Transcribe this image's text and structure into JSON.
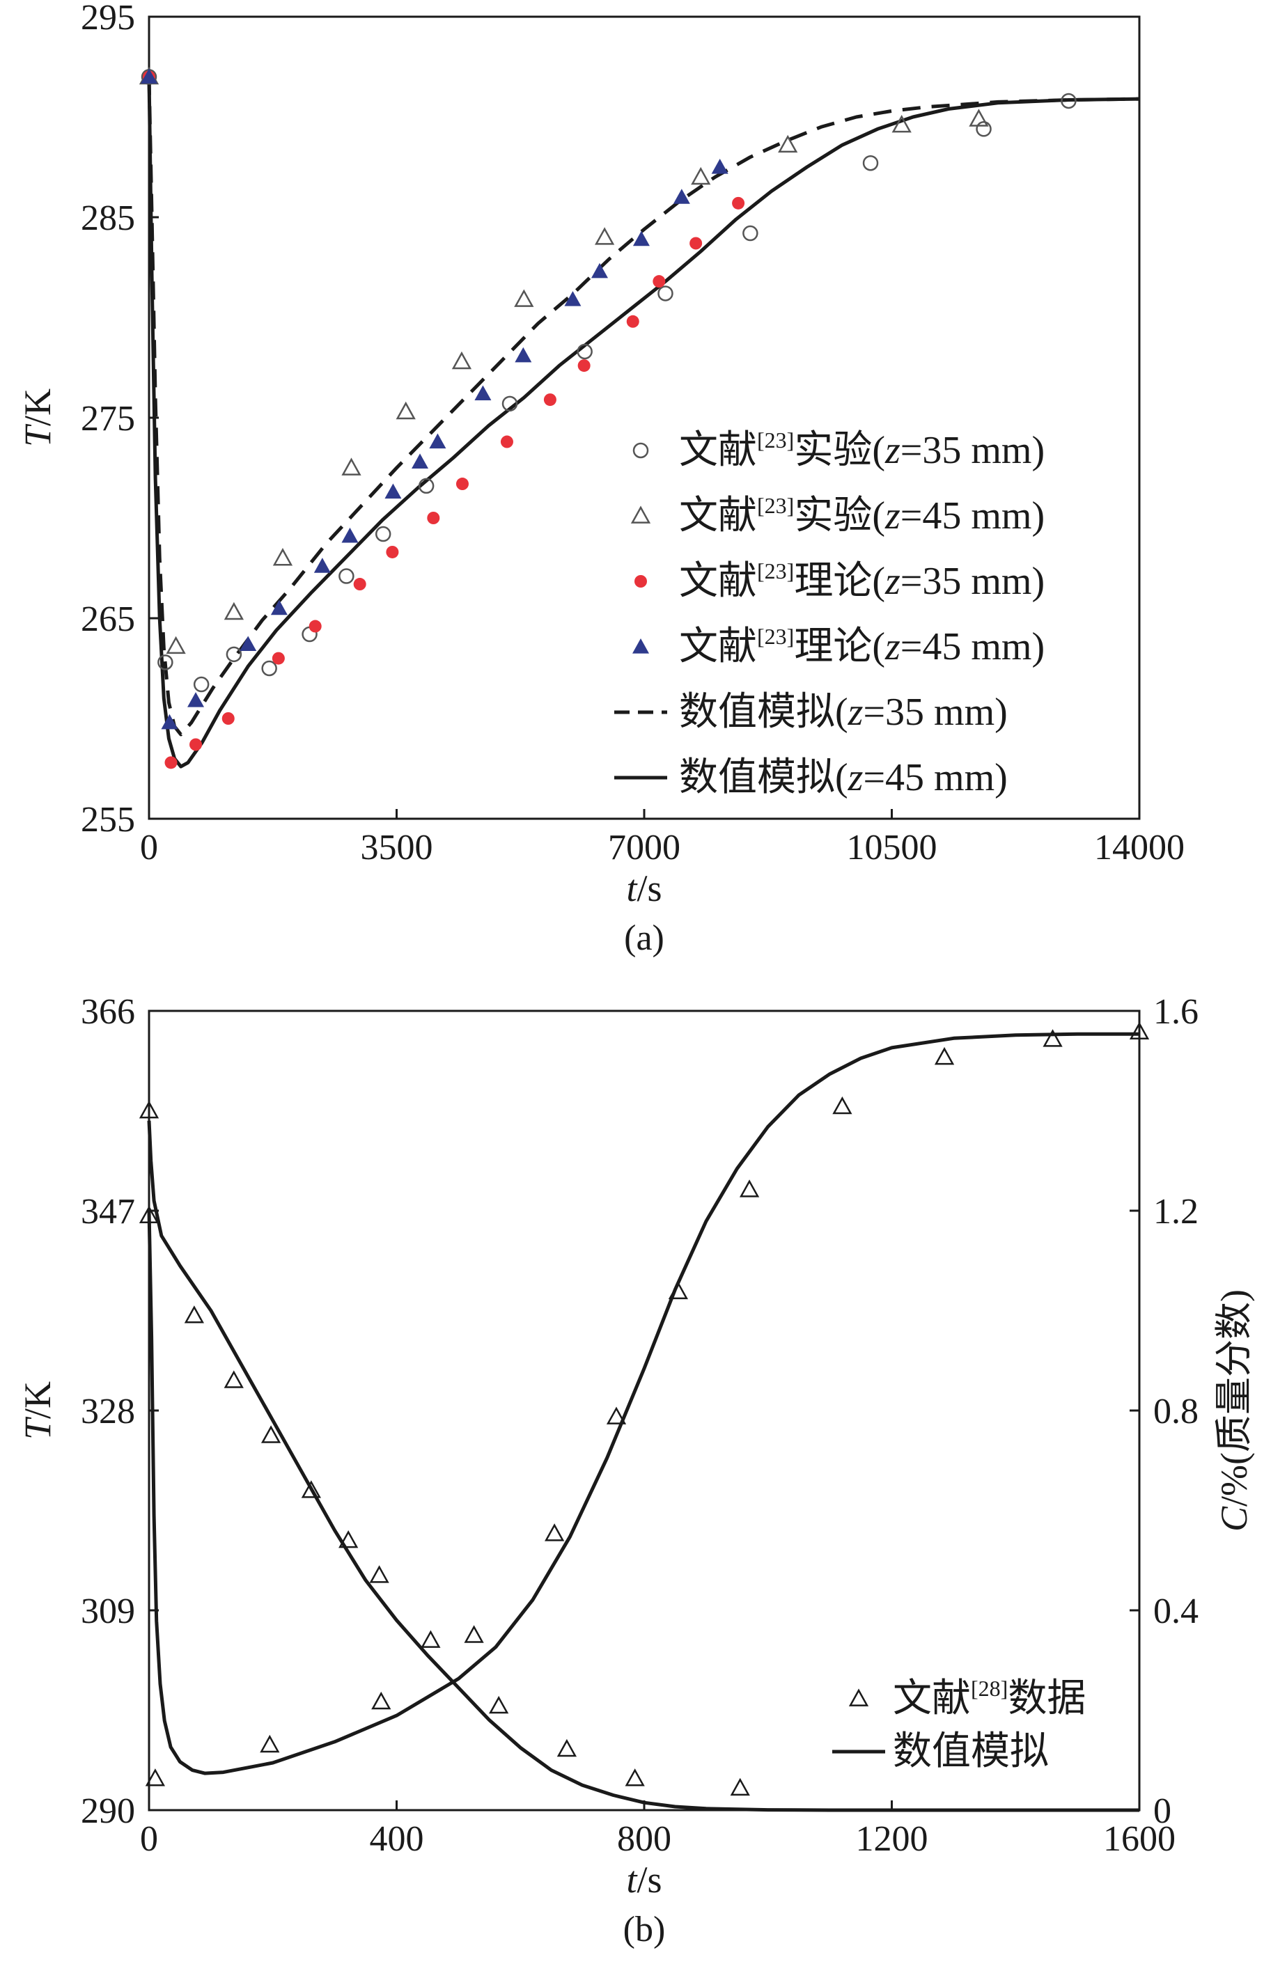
{
  "chart_data": [
    {
      "type": "line",
      "panel_label": "(a)",
      "xlabel": {
        "symbol": "t",
        "unit": "/s"
      },
      "ylabel": {
        "symbol": "T",
        "unit": "/K"
      },
      "xlim": [
        0,
        14000
      ],
      "ylim": [
        255,
        295
      ],
      "xticks": [
        0,
        3500,
        7000,
        10500,
        14000
      ],
      "yticks": [
        255,
        265,
        275,
        285,
        295
      ],
      "xtick_labels": [
        "0",
        "3500",
        "7000",
        "10500",
        "14000"
      ],
      "ytick_labels": [
        "255",
        "265",
        "275",
        "285",
        "295"
      ],
      "legend_position": "right-middle",
      "series": [
        {
          "name": "exp35",
          "legend": {
            "pre": "文献",
            "ref": "[23]",
            "mid": "实验(",
            "var": "z",
            "post": "=35 mm)"
          },
          "marker": "open-circle",
          "color": "#555555",
          "points": [
            [
              0,
              292
            ],
            [
              230,
              262.8
            ],
            [
              740,
              261.7
            ],
            [
              1200,
              263.2
            ],
            [
              1700,
              262.5
            ],
            [
              2270,
              264.2
            ],
            [
              2790,
              267.1
            ],
            [
              3310,
              269.2
            ],
            [
              3920,
              271.6
            ],
            [
              5100,
              275.7
            ],
            [
              6160,
              278.3
            ],
            [
              7300,
              281.2
            ],
            [
              8500,
              284.2
            ],
            [
              10200,
              287.7
            ],
            [
              11800,
              289.4
            ],
            [
              13000,
              290.8
            ]
          ]
        },
        {
          "name": "exp45",
          "legend": {
            "pre": "文献",
            "ref": "[23]",
            "mid": "实验(",
            "var": "z",
            "post": "=45 mm)"
          },
          "marker": "open-triangle",
          "color": "#555555",
          "points": [
            [
              0,
              292
            ],
            [
              380,
              263.6
            ],
            [
              1200,
              265.3
            ],
            [
              1890,
              268.0
            ],
            [
              2860,
              272.5
            ],
            [
              3630,
              275.3
            ],
            [
              4420,
              277.8
            ],
            [
              5300,
              280.9
            ],
            [
              6440,
              284.0
            ],
            [
              7800,
              287.0
            ],
            [
              9030,
              288.6
            ],
            [
              10640,
              289.6
            ],
            [
              11730,
              289.9
            ]
          ]
        },
        {
          "name": "theory35",
          "legend": {
            "pre": "文献",
            "ref": "[23]",
            "mid": "理论(",
            "var": "z",
            "post": "=35 mm)"
          },
          "marker": "filled-circle",
          "color": "#e8323a",
          "points": [
            [
              0,
              292
            ],
            [
              310,
              257.8
            ],
            [
              660,
              258.7
            ],
            [
              1120,
              260.0
            ],
            [
              1830,
              263.0
            ],
            [
              2350,
              264.6
            ],
            [
              2980,
              266.7
            ],
            [
              3440,
              268.3
            ],
            [
              4020,
              270.0
            ],
            [
              4430,
              271.7
            ],
            [
              5060,
              273.8
            ],
            [
              5670,
              275.9
            ],
            [
              6150,
              277.6
            ],
            [
              6840,
              279.8
            ],
            [
              7210,
              281.8
            ],
            [
              7730,
              283.7
            ],
            [
              8330,
              285.7
            ]
          ]
        },
        {
          "name": "theory45",
          "legend": {
            "pre": "文献",
            "ref": "[23]",
            "mid": "理论(",
            "var": "z",
            "post": "=45 mm)"
          },
          "marker": "filled-triangle",
          "color": "#2e3a8c",
          "points": [
            [
              0,
              292
            ],
            [
              290,
              259.8
            ],
            [
              660,
              260.9
            ],
            [
              1400,
              263.7
            ],
            [
              1840,
              265.5
            ],
            [
              2450,
              267.6
            ],
            [
              2840,
              269.1
            ],
            [
              3450,
              271.3
            ],
            [
              3830,
              272.8
            ],
            [
              4080,
              273.8
            ],
            [
              4720,
              276.2
            ],
            [
              5290,
              278.1
            ],
            [
              5990,
              280.9
            ],
            [
              6370,
              282.3
            ],
            [
              6960,
              283.9
            ],
            [
              7530,
              286.0
            ],
            [
              8070,
              287.5
            ]
          ]
        },
        {
          "name": "sim35",
          "legend": {
            "pre": "数值模拟(",
            "var": "z",
            "post": "=35 mm)"
          },
          "line": "dashed",
          "color": "#1a1a1a",
          "points": [
            [
              0,
              292
            ],
            [
              40,
              285
            ],
            [
              90,
              276
            ],
            [
              150,
              268
            ],
            [
              210,
              263.5
            ],
            [
              280,
              260.8
            ],
            [
              360,
              259.6
            ],
            [
              450,
              259.2
            ],
            [
              600,
              259.8
            ],
            [
              900,
              261.5
            ],
            [
              1200,
              263.0
            ],
            [
              1600,
              264.9
            ],
            [
              2000,
              266.5
            ],
            [
              2500,
              268.7
            ],
            [
              3000,
              270.6
            ],
            [
              3500,
              272.5
            ],
            [
              4000,
              274.3
            ],
            [
              4500,
              276.1
            ],
            [
              5000,
              277.9
            ],
            [
              5500,
              279.7
            ],
            [
              6000,
              281.2
            ],
            [
              6500,
              282.9
            ],
            [
              7000,
              284.4
            ],
            [
              7500,
              285.8
            ],
            [
              8000,
              287.0
            ],
            [
              8500,
              288.0
            ],
            [
              9000,
              288.8
            ],
            [
              9500,
              289.5
            ],
            [
              10000,
              290.0
            ],
            [
              10500,
              290.3
            ],
            [
              11000,
              290.5
            ],
            [
              12000,
              290.75
            ],
            [
              13000,
              290.85
            ],
            [
              14000,
              290.9
            ]
          ]
        },
        {
          "name": "sim45",
          "legend": {
            "pre": "数值模拟(",
            "var": "z",
            "post": "=45 mm)"
          },
          "line": "solid",
          "color": "#1a1a1a",
          "points": [
            [
              0,
              292
            ],
            [
              40,
              282
            ],
            [
              90,
              272
            ],
            [
              150,
              265
            ],
            [
              210,
              261
            ],
            [
              280,
              259
            ],
            [
              360,
              258
            ],
            [
              450,
              257.6
            ],
            [
              550,
              257.8
            ],
            [
              750,
              258.8
            ],
            [
              1000,
              260.4
            ],
            [
              1400,
              262.6
            ],
            [
              1800,
              264.4
            ],
            [
              2300,
              266.3
            ],
            [
              2800,
              268.1
            ],
            [
              3300,
              269.9
            ],
            [
              3800,
              271.5
            ],
            [
              4300,
              273.0
            ],
            [
              4800,
              274.6
            ],
            [
              5300,
              276.0
            ],
            [
              5800,
              277.6
            ],
            [
              6300,
              279.0
            ],
            [
              6800,
              280.4
            ],
            [
              7300,
              281.8
            ],
            [
              7800,
              283.3
            ],
            [
              8300,
              284.9
            ],
            [
              8800,
              286.3
            ],
            [
              9300,
              287.5
            ],
            [
              9800,
              288.6
            ],
            [
              10300,
              289.4
            ],
            [
              10800,
              290.0
            ],
            [
              11300,
              290.4
            ],
            [
              12000,
              290.7
            ],
            [
              13000,
              290.85
            ],
            [
              14000,
              290.9
            ]
          ]
        }
      ]
    },
    {
      "type": "line",
      "panel_label": "(b)",
      "xlabel": {
        "symbol": "t",
        "unit": "/s"
      },
      "ylabel": {
        "symbol": "T",
        "unit": "/K"
      },
      "y2label": {
        "symbol": "C",
        "unit": "/%(质量分数)"
      },
      "xlim": [
        0,
        1600
      ],
      "ylim": [
        290,
        366
      ],
      "y2lim": [
        0,
        1.6
      ],
      "xticks": [
        0,
        400,
        800,
        1200,
        1600
      ],
      "yticks": [
        290,
        309,
        328,
        347,
        366
      ],
      "y2ticks": [
        0,
        0.4,
        0.8,
        1.2,
        1.6
      ],
      "xtick_labels": [
        "0",
        "400",
        "800",
        "1200",
        "1600"
      ],
      "ytick_labels": [
        "290",
        "309",
        "328",
        "347",
        "366"
      ],
      "y2tick_labels": [
        "0",
        "0.4",
        "0.8",
        "1.2",
        "1.6"
      ],
      "legend_position": "bottom-right",
      "series": [
        {
          "name": "data_T",
          "legend": {
            "pre": "文献",
            "ref": "[28]",
            "post": "数据"
          },
          "marker": "open-triangle",
          "color": "#1a1a1a",
          "axis": "left",
          "points": [
            [
              10,
              293
            ],
            [
              195,
              296.2
            ],
            [
              375,
              300.3
            ],
            [
              565,
              299.9
            ],
            [
              675,
              295.8
            ],
            [
              785,
              293.0
            ],
            [
              955,
              292.1
            ],
            [
              655,
              316.3
            ],
            [
              755,
              327.4
            ],
            [
              855,
              339.3
            ],
            [
              970,
              349.0
            ],
            [
              1120,
              356.9
            ],
            [
              1285,
              361.6
            ],
            [
              1460,
              363.3
            ],
            [
              1600,
              364.0
            ]
          ]
        },
        {
          "name": "data_C",
          "legend": {
            "pre": "文献",
            "ref": "[28]",
            "post": "数据"
          },
          "marker": "open-triangle",
          "color": "#1a1a1a",
          "axis": "right",
          "points": [
            [
              0,
              1.4
            ],
            [
              0,
              1.19
            ],
            [
              73,
              0.99
            ],
            [
              137,
              0.86
            ],
            [
              197,
              0.75
            ],
            [
              262,
              0.64
            ],
            [
              322,
              0.54
            ],
            [
              372,
              0.47
            ],
            [
              455,
              0.34
            ],
            [
              525,
              0.35
            ]
          ]
        },
        {
          "name": "sim_T",
          "legend": {
            "pre": "数值模拟"
          },
          "line": "solid",
          "color": "#1a1a1a",
          "axis": "left",
          "points": [
            [
              0,
              347
            ],
            [
              4,
              335
            ],
            [
              8,
              318
            ],
            [
              12,
              308
            ],
            [
              18,
              302
            ],
            [
              25,
              298.5
            ],
            [
              35,
              296
            ],
            [
              50,
              294.6
            ],
            [
              70,
              293.8
            ],
            [
              90,
              293.5
            ],
            [
              120,
              293.6
            ],
            [
              200,
              294.5
            ],
            [
              300,
              296.5
            ],
            [
              400,
              299.0
            ],
            [
              500,
              302.5
            ],
            [
              560,
              305.5
            ],
            [
              620,
              310
            ],
            [
              680,
              316
            ],
            [
              740,
              323.5
            ],
            [
              800,
              332
            ],
            [
              850,
              339.5
            ],
            [
              900,
              346
            ],
            [
              950,
              351
            ],
            [
              1000,
              355
            ],
            [
              1050,
              358
            ],
            [
              1100,
              360
            ],
            [
              1150,
              361.5
            ],
            [
              1200,
              362.5
            ],
            [
              1300,
              363.4
            ],
            [
              1400,
              363.7
            ],
            [
              1500,
              363.8
            ],
            [
              1600,
              363.8
            ]
          ]
        },
        {
          "name": "sim_C",
          "legend": {
            "pre": "数值模拟"
          },
          "line": "solid",
          "color": "#1a1a1a",
          "axis": "right",
          "points": [
            [
              0,
              1.38
            ],
            [
              3,
              1.3
            ],
            [
              8,
              1.22
            ],
            [
              20,
              1.15
            ],
            [
              50,
              1.09
            ],
            [
              100,
              1.0
            ],
            [
              150,
              0.89
            ],
            [
              200,
              0.78
            ],
            [
              250,
              0.67
            ],
            [
              300,
              0.56
            ],
            [
              350,
              0.46
            ],
            [
              400,
              0.38
            ],
            [
              450,
              0.31
            ],
            [
              500,
              0.245
            ],
            [
              550,
              0.18
            ],
            [
              600,
              0.125
            ],
            [
              650,
              0.08
            ],
            [
              700,
              0.05
            ],
            [
              750,
              0.03
            ],
            [
              800,
              0.015
            ],
            [
              850,
              0.007
            ],
            [
              900,
              0.003
            ],
            [
              1000,
              0.0005
            ],
            [
              1100,
              0
            ],
            [
              1600,
              0
            ]
          ]
        }
      ]
    }
  ]
}
